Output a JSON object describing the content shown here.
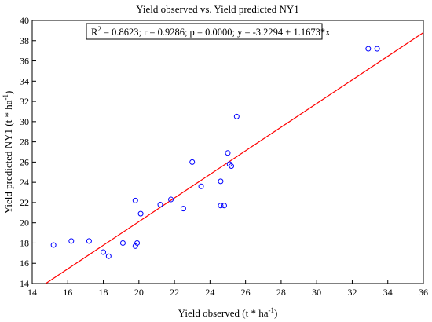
{
  "chart_data": {
    "type": "scatter",
    "title": "Yield observed vs. Yield predicted NY1",
    "xlabel": {
      "main": "Yield observed (t * ha",
      "sup": "-1",
      "end": ")"
    },
    "ylabel": {
      "main": "Yield predicted NY1 (t * ha",
      "sup": "-1",
      "end": ")"
    },
    "xlim": [
      14,
      36
    ],
    "ylim": [
      14,
      40
    ],
    "xticks": [
      14,
      16,
      18,
      20,
      22,
      24,
      26,
      28,
      30,
      32,
      34,
      36
    ],
    "yticks": [
      14,
      16,
      18,
      20,
      22,
      24,
      26,
      28,
      30,
      32,
      34,
      36,
      38,
      40
    ],
    "grid": false,
    "annotation": {
      "r2_prefix": "R",
      "r2_sup": "2",
      "r2_rest": " = 0.8623;  r = 0.9286; p = 0.0000;  y = -3.2294 + 1.1673*x"
    },
    "fit_line": {
      "intercept": -3.2294,
      "slope": 1.1673,
      "color": "#ff0000"
    },
    "marker_color": "#0000ff",
    "points": [
      {
        "x": 15.2,
        "y": 17.8
      },
      {
        "x": 16.2,
        "y": 18.2
      },
      {
        "x": 17.2,
        "y": 18.2
      },
      {
        "x": 18.0,
        "y": 17.1
      },
      {
        "x": 18.3,
        "y": 16.7
      },
      {
        "x": 19.1,
        "y": 18.0
      },
      {
        "x": 19.8,
        "y": 17.7
      },
      {
        "x": 19.9,
        "y": 18.0
      },
      {
        "x": 19.8,
        "y": 22.2
      },
      {
        "x": 20.1,
        "y": 20.9
      },
      {
        "x": 21.2,
        "y": 21.8
      },
      {
        "x": 21.8,
        "y": 22.3
      },
      {
        "x": 22.5,
        "y": 21.4
      },
      {
        "x": 23.0,
        "y": 26.0
      },
      {
        "x": 23.5,
        "y": 23.6
      },
      {
        "x": 24.6,
        "y": 24.1
      },
      {
        "x": 24.6,
        "y": 21.7
      },
      {
        "x": 24.8,
        "y": 21.7
      },
      {
        "x": 25.0,
        "y": 26.9
      },
      {
        "x": 25.1,
        "y": 25.8
      },
      {
        "x": 25.2,
        "y": 25.6
      },
      {
        "x": 25.5,
        "y": 30.5
      },
      {
        "x": 32.9,
        "y": 37.2
      },
      {
        "x": 33.4,
        "y": 37.2
      }
    ]
  }
}
